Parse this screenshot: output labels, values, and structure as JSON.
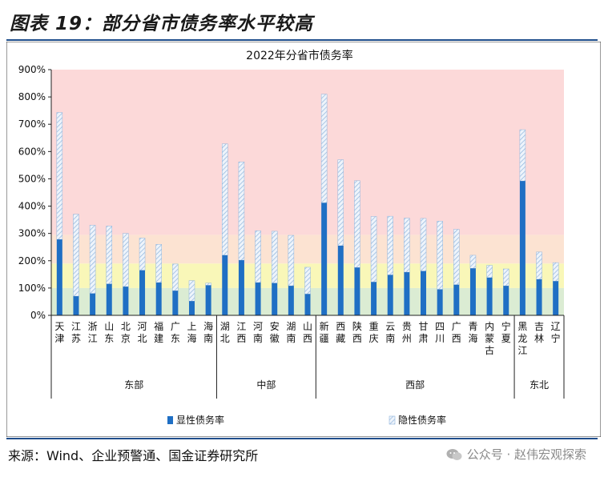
{
  "page": {
    "figure_title": "图表 19：部分省市债务率水平较高",
    "source": "来源：Wind、企业预警通、国金证券研究所",
    "watermark": "公众号 · 赵伟宏观探索"
  },
  "colors": {
    "explicit": "#1f6fc4",
    "explicit_dark": "#1b5fa8",
    "hidden_stroke": "#8fb4dc",
    "hidden_fill": "#eef4fb",
    "band_red": "#fcd9d9",
    "band_orange": "#fce3d2",
    "band_yellow": "#f9f7b8",
    "band_green": "#dbecd3",
    "rule": "#1f4e8c"
  },
  "chart_data": {
    "type": "bar",
    "stacked": true,
    "title": "2022年分省市债务率",
    "ylim": [
      0,
      900
    ],
    "y_ticks": [
      "0%",
      "100%",
      "200%",
      "300%",
      "400%",
      "500%",
      "600%",
      "700%",
      "800%",
      "900%"
    ],
    "background_bands": [
      {
        "from": 0,
        "to": 100,
        "color": "band_green"
      },
      {
        "from": 100,
        "to": 190,
        "color": "band_yellow"
      },
      {
        "from": 190,
        "to": 295,
        "color": "band_orange"
      },
      {
        "from": 295,
        "to": 900,
        "color": "band_red"
      }
    ],
    "categories": [
      "天津",
      "江苏",
      "浙江",
      "山东",
      "北京",
      "河北",
      "福建",
      "广东",
      "上海",
      "海南",
      "湖北",
      "江西",
      "河南",
      "安徽",
      "湖南",
      "山西",
      "新疆",
      "西藏",
      "陕西",
      "重庆",
      "云南",
      "贵州",
      "甘肃",
      "四川",
      "广西",
      "青海",
      "内蒙古",
      "宁夏",
      "黑龙江",
      "吉林",
      "辽宁"
    ],
    "regions": [
      {
        "name": "东部",
        "count": 10
      },
      {
        "name": "中部",
        "count": 6
      },
      {
        "name": "西部",
        "count": 12
      },
      {
        "name": "东北",
        "count": 3
      }
    ],
    "series": [
      {
        "name": "显性债务率",
        "values": [
          278,
          70,
          80,
          115,
          105,
          165,
          120,
          90,
          52,
          110,
          220,
          202,
          120,
          118,
          108,
          78,
          412,
          255,
          175,
          122,
          148,
          158,
          162,
          95,
          112,
          172,
          138,
          108,
          492,
          132,
          125
        ]
      },
      {
        "name": "隐性债务率",
        "values": [
          465,
          300,
          250,
          212,
          195,
          118,
          140,
          98,
          75,
          8,
          408,
          360,
          190,
          190,
          185,
          98,
          398,
          315,
          318,
          240,
          215,
          198,
          193,
          250,
          203,
          48,
          45,
          62,
          188,
          100,
          68
        ]
      }
    ],
    "legend": [
      "显性债务率",
      "隐性债务率"
    ],
    "legend_position": "bottom"
  }
}
